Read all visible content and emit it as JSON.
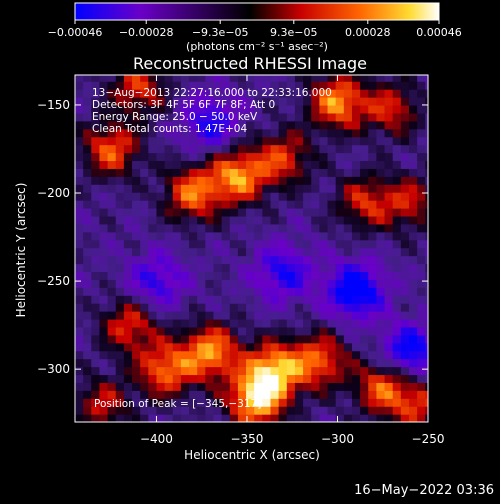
{
  "colorbar": {
    "ticks": [
      {
        "label": "−0.00046",
        "value": -0.00046
      },
      {
        "label": "−0.00028",
        "value": -0.00028
      },
      {
        "label": "−9.3e−05",
        "value": -9.3e-05
      },
      {
        "label": "9.3e−05",
        "value": 9.3e-05
      },
      {
        "label": "0.00028",
        "value": 0.00028
      },
      {
        "label": "0.00046",
        "value": 0.00046
      }
    ],
    "range": [
      -0.00046,
      0.00046
    ],
    "units_label": "(photons cm⁻² s⁻¹ asec⁻²)",
    "colors": [
      "#0000ff",
      "#6a00c8",
      "#000000",
      "#c80000",
      "#ff6400",
      "#ffdc32",
      "#ffffff"
    ]
  },
  "chart_data": {
    "type": "heatmap",
    "title": "Reconstructed RHESSI Image",
    "xlabel": "Heliocentric X (arcsec)",
    "ylabel": "Heliocentric Y (arcsec)",
    "xlim": [
      -445,
      -250
    ],
    "ylim": [
      -330,
      -133
    ],
    "x_ticks": [
      {
        "label": "−400",
        "value": -400
      },
      {
        "label": "−350",
        "value": -350
      },
      {
        "label": "−300",
        "value": -300
      },
      {
        "label": "−250",
        "value": -250
      }
    ],
    "y_ticks": [
      {
        "label": "−150",
        "value": -150
      },
      {
        "label": "−200",
        "value": -200
      },
      {
        "label": "−250",
        "value": -250
      },
      {
        "label": "−300",
        "value": -300
      }
    ],
    "annotations": [
      "13−Aug−2013 22:27:16.000 to 22:33:16.000",
      "Detectors: 3F 4F 5F 6F 7F 8F; Att 0",
      "Energy Range: 25.0 − 50.0 keV",
      "Clean     Total counts: 1.47E+04"
    ],
    "peak_label": "Position of Peak = [−345,−317]",
    "peak": [
      -345,
      -317
    ],
    "contrast": "bright emission concentrated in a band at upper left (Y > −220) and across the lower half (Y < −275); negative (purple/blue) residuals in the middle",
    "bright_regions": [
      {
        "x": -425,
        "y": -175,
        "level": 0.7
      },
      {
        "x": -380,
        "y": -200,
        "level": 0.75
      },
      {
        "x": -355,
        "y": -190,
        "level": 0.85
      },
      {
        "x": -330,
        "y": -180,
        "level": 0.6
      },
      {
        "x": -300,
        "y": -148,
        "level": 0.85
      },
      {
        "x": -270,
        "y": -152,
        "level": 0.55
      },
      {
        "x": -410,
        "y": -140,
        "level": 0.6
      },
      {
        "x": -285,
        "y": -205,
        "level": 0.55
      },
      {
        "x": -260,
        "y": -205,
        "level": 0.5
      },
      {
        "x": -415,
        "y": -275,
        "level": 0.6
      },
      {
        "x": -395,
        "y": -300,
        "level": 0.75
      },
      {
        "x": -370,
        "y": -290,
        "level": 0.85
      },
      {
        "x": -335,
        "y": -300,
        "level": 0.9
      },
      {
        "x": -345,
        "y": -317,
        "level": 1.0
      },
      {
        "x": -310,
        "y": -295,
        "level": 0.7
      },
      {
        "x": -275,
        "y": -310,
        "level": 0.7
      },
      {
        "x": -255,
        "y": -320,
        "level": 0.55
      },
      {
        "x": -430,
        "y": -320,
        "level": 0.5
      }
    ],
    "dark_regions": [
      {
        "x": -290,
        "y": -255,
        "level": -0.8
      },
      {
        "x": -260,
        "y": -290,
        "level": -0.7
      },
      {
        "x": -330,
        "y": -245,
        "level": -0.55
      },
      {
        "x": -400,
        "y": -250,
        "level": -0.5
      },
      {
        "x": -370,
        "y": -160,
        "level": -0.55
      }
    ]
  },
  "footer": {
    "timestamp": "16−May−2022 03:36"
  }
}
